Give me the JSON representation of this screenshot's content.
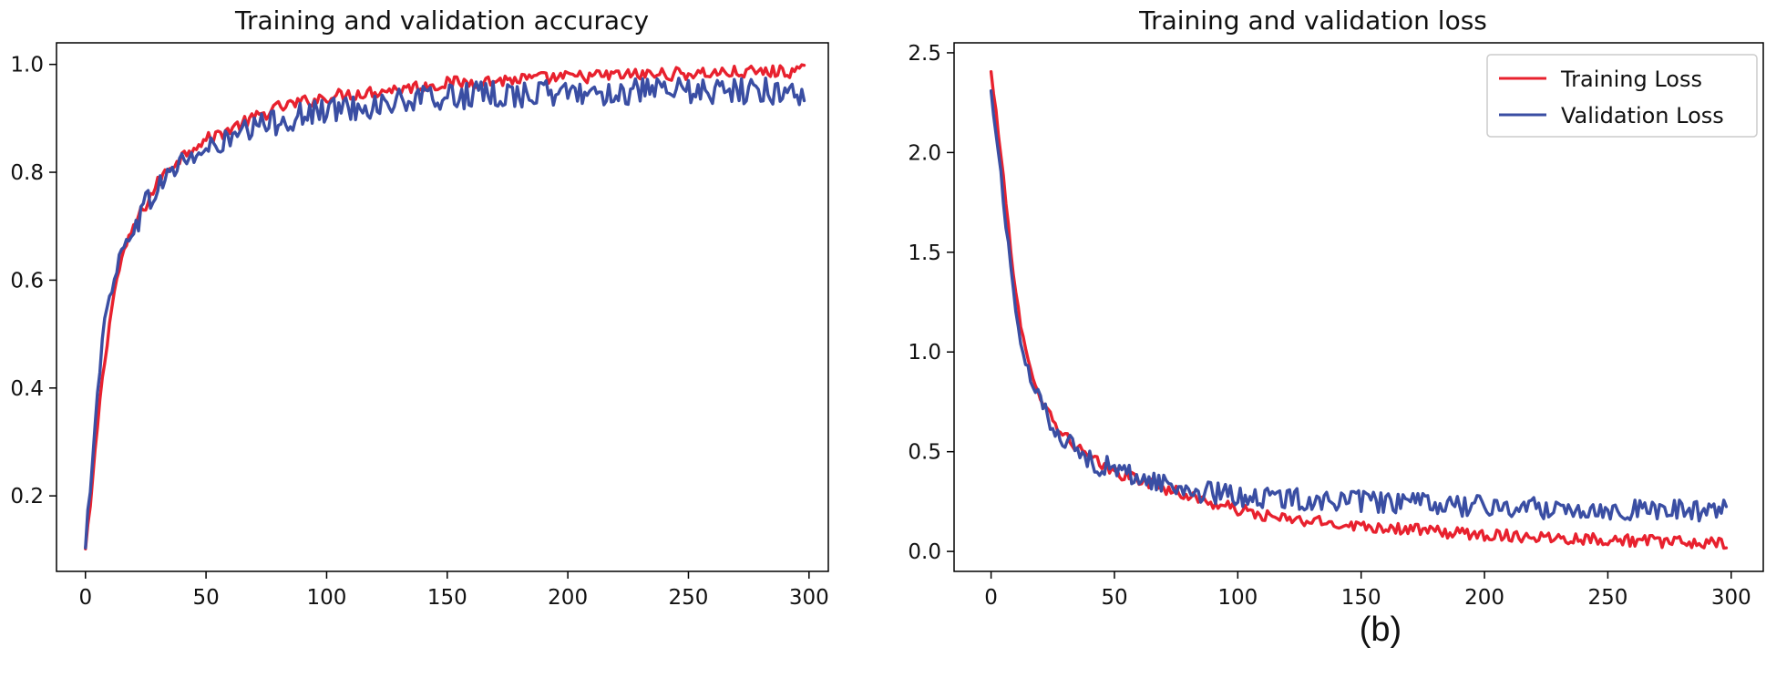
{
  "figure_label": "(b)",
  "colors": {
    "training": "#e8212e",
    "validation": "#3a4ea3",
    "axis": "#000000"
  },
  "chart_data": [
    {
      "type": "line",
      "title": "Training and validation accuracy",
      "xlabel": "",
      "ylabel": "",
      "xlim": [
        -12,
        308
      ],
      "ylim": [
        0.06,
        1.04
      ],
      "xticks": [
        0,
        50,
        100,
        150,
        200,
        250,
        300
      ],
      "yticks": [
        0.2,
        0.4,
        0.6,
        0.8,
        1.0
      ],
      "ytick_labels": [
        "0.2",
        "0.4",
        "0.6",
        "0.8",
        "1.0"
      ],
      "grid": false,
      "legend": null,
      "series": [
        {
          "key": "training",
          "x": [
            0,
            2,
            4,
            6,
            8,
            10,
            12,
            15,
            20,
            25,
            30,
            35,
            40,
            45,
            50,
            55,
            60,
            65,
            70,
            75,
            80,
            85,
            90,
            95,
            100,
            110,
            120,
            130,
            140,
            150,
            160,
            170,
            180,
            190,
            200,
            210,
            220,
            230,
            240,
            250,
            260,
            270,
            280,
            290,
            298
          ],
          "y": [
            0.1,
            0.18,
            0.28,
            0.38,
            0.45,
            0.52,
            0.58,
            0.64,
            0.7,
            0.74,
            0.78,
            0.81,
            0.83,
            0.85,
            0.86,
            0.87,
            0.88,
            0.89,
            0.9,
            0.91,
            0.92,
            0.925,
            0.93,
            0.935,
            0.94,
            0.945,
            0.95,
            0.955,
            0.96,
            0.965,
            0.967,
            0.97,
            0.972,
            0.974,
            0.976,
            0.978,
            0.98,
            0.981,
            0.982,
            0.983,
            0.984,
            0.985,
            0.986,
            0.987,
            0.988
          ],
          "noise": 0.012
        },
        {
          "key": "validation",
          "x": [
            0,
            2,
            4,
            6,
            8,
            10,
            12,
            15,
            20,
            25,
            30,
            35,
            40,
            45,
            50,
            55,
            60,
            65,
            70,
            75,
            80,
            85,
            90,
            95,
            100,
            110,
            120,
            130,
            140,
            150,
            160,
            170,
            180,
            190,
            200,
            210,
            220,
            230,
            240,
            250,
            260,
            270,
            280,
            290,
            298
          ],
          "y": [
            0.1,
            0.22,
            0.34,
            0.44,
            0.52,
            0.57,
            0.61,
            0.65,
            0.7,
            0.74,
            0.77,
            0.8,
            0.82,
            0.83,
            0.84,
            0.85,
            0.86,
            0.87,
            0.88,
            0.89,
            0.895,
            0.9,
            0.905,
            0.91,
            0.915,
            0.92,
            0.925,
            0.93,
            0.935,
            0.94,
            0.942,
            0.944,
            0.945,
            0.946,
            0.947,
            0.948,
            0.948,
            0.949,
            0.949,
            0.95,
            0.95,
            0.95,
            0.951,
            0.951,
            0.945
          ],
          "noise": 0.025
        }
      ]
    },
    {
      "type": "line",
      "title": "Training and validation loss",
      "xlabel": "",
      "ylabel": "",
      "xlim": [
        -15,
        313
      ],
      "ylim": [
        -0.1,
        2.55
      ],
      "xticks": [
        0,
        50,
        100,
        150,
        200,
        250,
        300
      ],
      "yticks": [
        0.0,
        0.5,
        1.0,
        1.5,
        2.0,
        2.5
      ],
      "ytick_labels": [
        "0.0",
        "0.5",
        "1.0",
        "1.5",
        "2.0",
        "2.5"
      ],
      "grid": false,
      "legend": {
        "placement": "top-right",
        "entries": [
          "Training Loss",
          "Validation Loss"
        ]
      },
      "series": [
        {
          "key": "training",
          "name": "Training Loss",
          "x": [
            0,
            3,
            6,
            9,
            12,
            15,
            20,
            25,
            30,
            35,
            40,
            45,
            50,
            55,
            60,
            70,
            80,
            90,
            100,
            110,
            120,
            130,
            140,
            150,
            160,
            170,
            180,
            190,
            200,
            210,
            220,
            230,
            240,
            250,
            260,
            270,
            280,
            290,
            298
          ],
          "y": [
            2.4,
            2.1,
            1.75,
            1.4,
            1.12,
            0.95,
            0.78,
            0.66,
            0.58,
            0.52,
            0.47,
            0.43,
            0.4,
            0.38,
            0.36,
            0.32,
            0.28,
            0.24,
            0.21,
            0.18,
            0.16,
            0.15,
            0.14,
            0.13,
            0.12,
            0.11,
            0.1,
            0.09,
            0.085,
            0.08,
            0.075,
            0.07,
            0.065,
            0.06,
            0.055,
            0.05,
            0.045,
            0.04,
            0.035
          ],
          "noise": 0.03
        },
        {
          "key": "validation",
          "name": "Validation Loss",
          "x": [
            0,
            3,
            6,
            9,
            12,
            15,
            20,
            25,
            30,
            35,
            40,
            45,
            50,
            55,
            60,
            70,
            80,
            90,
            100,
            110,
            120,
            130,
            140,
            150,
            160,
            170,
            180,
            190,
            200,
            210,
            220,
            230,
            240,
            250,
            260,
            270,
            280,
            290,
            298
          ],
          "y": [
            2.3,
            2.0,
            1.65,
            1.3,
            1.05,
            0.9,
            0.75,
            0.64,
            0.56,
            0.5,
            0.46,
            0.43,
            0.41,
            0.39,
            0.37,
            0.34,
            0.31,
            0.29,
            0.28,
            0.27,
            0.265,
            0.26,
            0.255,
            0.25,
            0.245,
            0.24,
            0.235,
            0.23,
            0.225,
            0.22,
            0.22,
            0.215,
            0.215,
            0.21,
            0.21,
            0.21,
            0.205,
            0.205,
            0.22
          ],
          "noise": 0.055
        }
      ]
    }
  ]
}
